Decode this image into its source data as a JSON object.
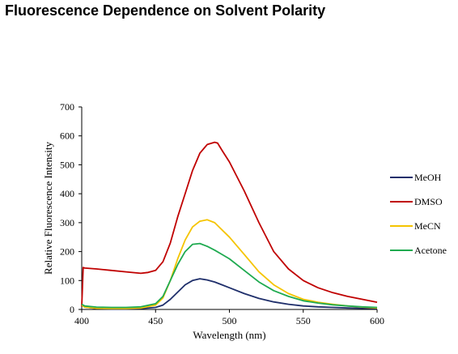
{
  "page_title": "Fluorescence Dependence on Solvent Polarity",
  "chart_data": {
    "type": "line",
    "title": "Fluorescence Dependence on Solvent Polarity",
    "xlabel": "Wavelength (nm)",
    "ylabel": "Relative Fluorescence Intensity",
    "xlim": [
      400,
      600
    ],
    "ylim": [
      0,
      700
    ],
    "xticks": [
      400,
      450,
      500,
      550,
      600
    ],
    "yticks": [
      0,
      100,
      200,
      300,
      400,
      500,
      600,
      700
    ],
    "grid": false,
    "legend_position": "right",
    "series": [
      {
        "name": "MeOH",
        "color": "#1f2f6b",
        "x": [
          400,
          402,
          410,
          420,
          430,
          440,
          450,
          455,
          460,
          465,
          470,
          475,
          480,
          485,
          490,
          495,
          500,
          510,
          520,
          530,
          540,
          550,
          560,
          570,
          580,
          590,
          600
        ],
        "y": [
          15,
          8,
          3,
          2,
          2,
          3,
          7,
          15,
          35,
          60,
          85,
          100,
          106,
          102,
          95,
          85,
          75,
          55,
          38,
          26,
          18,
          12,
          9,
          7,
          5,
          4,
          3
        ]
      },
      {
        "name": "DMSO",
        "color": "#c00000",
        "x": [
          400,
          401,
          402,
          410,
          420,
          430,
          440,
          445,
          450,
          455,
          460,
          465,
          470,
          475,
          480,
          485,
          490,
          492,
          495,
          500,
          510,
          520,
          530,
          540,
          550,
          560,
          570,
          580,
          590,
          600
        ],
        "y": [
          10,
          145,
          143,
          140,
          135,
          130,
          125,
          128,
          135,
          165,
          230,
          320,
          400,
          480,
          540,
          570,
          578,
          575,
          550,
          510,
          410,
          300,
          200,
          140,
          100,
          75,
          58,
          45,
          35,
          25
        ]
      },
      {
        "name": "MeCN",
        "color": "#f5c400",
        "x": [
          400,
          402,
          410,
          420,
          430,
          440,
          450,
          455,
          460,
          465,
          470,
          475,
          480,
          485,
          490,
          495,
          500,
          510,
          520,
          530,
          540,
          550,
          560,
          570,
          580,
          590,
          600
        ],
        "y": [
          15,
          8,
          4,
          3,
          3,
          5,
          15,
          40,
          100,
          175,
          240,
          285,
          305,
          310,
          300,
          275,
          250,
          190,
          130,
          85,
          55,
          35,
          25,
          18,
          12,
          8,
          5
        ]
      },
      {
        "name": "Acetone",
        "color": "#1faa50",
        "x": [
          400,
          402,
          410,
          420,
          430,
          440,
          450,
          455,
          460,
          465,
          470,
          475,
          480,
          485,
          490,
          495,
          500,
          510,
          520,
          530,
          540,
          550,
          560,
          570,
          580,
          590,
          600
        ],
        "y": [
          18,
          12,
          8,
          7,
          7,
          9,
          20,
          45,
          100,
          155,
          200,
          225,
          228,
          218,
          205,
          190,
          175,
          135,
          95,
          65,
          45,
          30,
          22,
          16,
          12,
          9,
          7
        ]
      }
    ]
  }
}
